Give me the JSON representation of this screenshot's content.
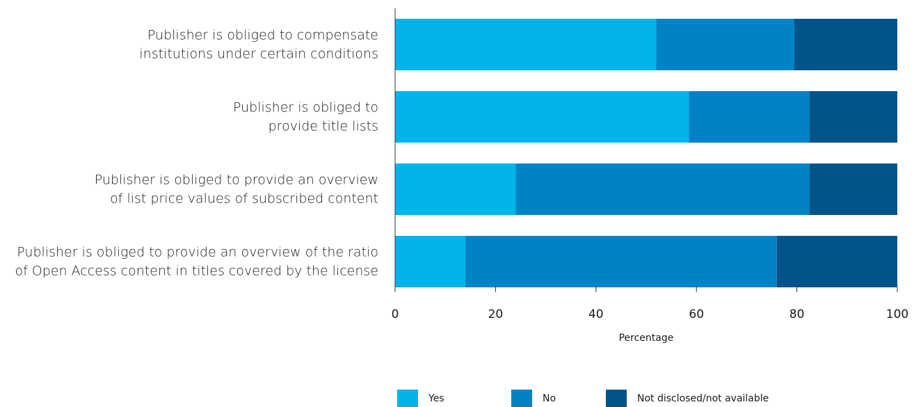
{
  "chart_data": {
    "type": "stacked_barh",
    "categories": [
      "Publisher is obliged to compensate\ninstitutions under certain conditions",
      "Publisher is obliged to\nprovide title lists",
      "Publisher is obliged to provide an overview\nof list price values of subscribed content",
      "Publisher is obliged to provide an overview of the ratio\nof Open Access content in titles covered by the license"
    ],
    "series": [
      {
        "name": "Yes",
        "color": "#00b4eb",
        "values": [
          52,
          58.5,
          24,
          14
        ]
      },
      {
        "name": "No",
        "color": "#0082c6",
        "values": [
          27.5,
          24,
          58.5,
          62
        ]
      },
      {
        "name": "Not disclosed/not available",
        "color": "#00548a",
        "values": [
          20.5,
          17.5,
          17.5,
          24
        ]
      }
    ],
    "xlim": [
      0,
      100
    ],
    "xticks": [
      0,
      20,
      40,
      60,
      80,
      100
    ],
    "xlabel": "Percentage",
    "legend": "bottom"
  }
}
